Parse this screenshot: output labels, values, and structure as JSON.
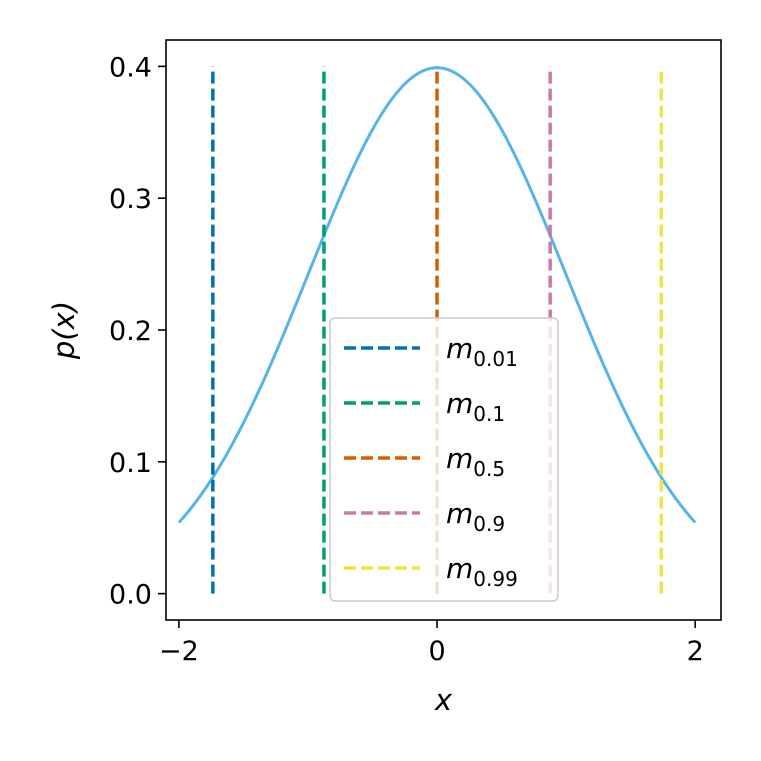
{
  "chart_data": {
    "type": "line",
    "xlabel": "x",
    "ylabel": "p(x)",
    "xlim": [
      -2.1,
      2.2
    ],
    "ylim": [
      -0.02,
      0.42
    ],
    "xticks": [
      {
        "value": -2,
        "label": "−2"
      },
      {
        "value": 0,
        "label": "0"
      },
      {
        "value": 2,
        "label": "2"
      }
    ],
    "yticks": [
      {
        "value": 0.0,
        "label": "0.0"
      },
      {
        "value": 0.1,
        "label": "0.1"
      },
      {
        "value": 0.2,
        "label": "0.2"
      },
      {
        "value": 0.3,
        "label": "0.3"
      },
      {
        "value": 0.4,
        "label": "0.4"
      }
    ],
    "curve": {
      "function": "standard normal pdf",
      "x_range": [
        -2,
        2
      ],
      "color": "#56b4e9"
    },
    "vlines": [
      {
        "name": "m",
        "sub": "0.01",
        "x": -1.7371,
        "ymin": 0,
        "ymax": 0.4,
        "color": "#0072b2"
      },
      {
        "name": "m",
        "sub": "0.1",
        "x": -0.8763,
        "ymin": 0,
        "ymax": 0.4,
        "color": "#009e73"
      },
      {
        "name": "m",
        "sub": "0.5",
        "x": 0.0,
        "ymin": 0,
        "ymax": 0.4,
        "color": "#d55e00"
      },
      {
        "name": "m",
        "sub": "0.9",
        "x": 0.8763,
        "ymin": 0,
        "ymax": 0.4,
        "color": "#cc79a7"
      },
      {
        "name": "m",
        "sub": "0.99",
        "x": 1.7371,
        "ymin": 0,
        "ymax": 0.4,
        "color": "#f0e442"
      }
    ],
    "legend_position": "lower-center",
    "grid": false
  }
}
